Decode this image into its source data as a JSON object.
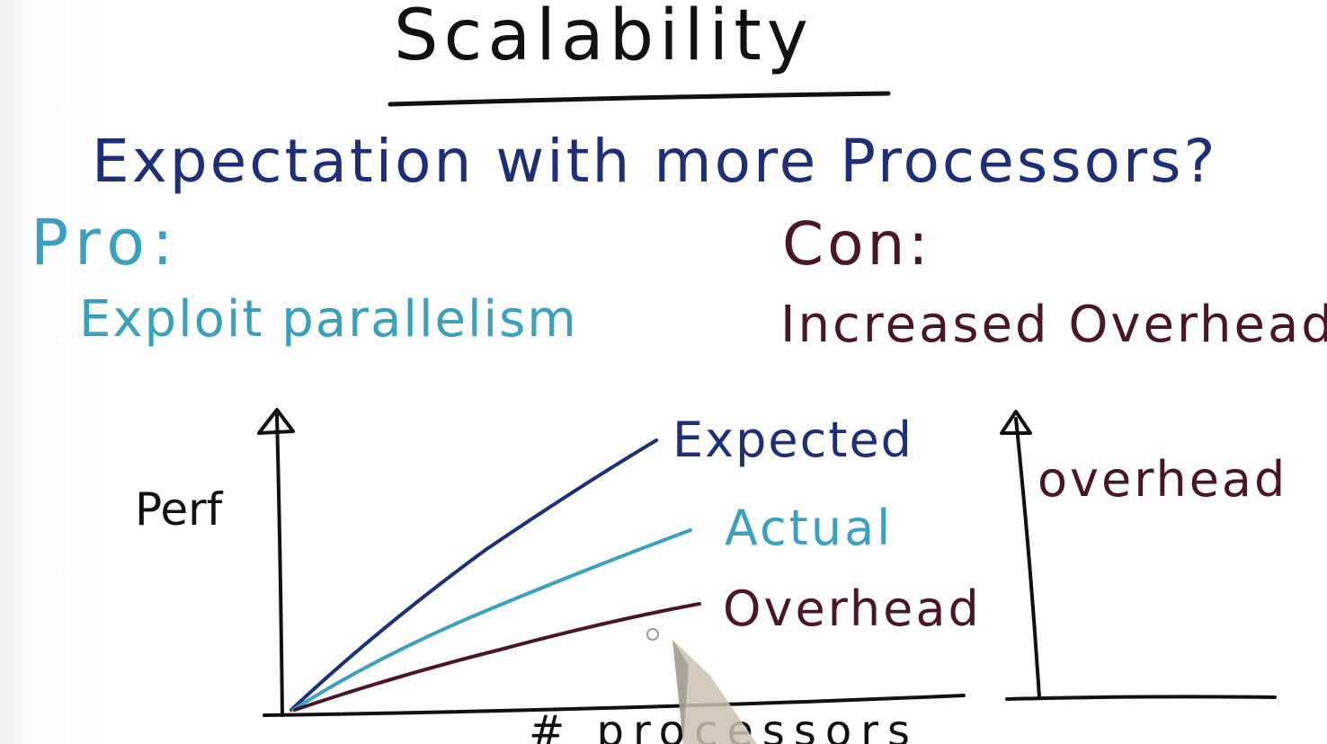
{
  "slide": {
    "title": "Scalability",
    "question": "Expectation with more Processors?",
    "pro": {
      "label": "Pro:",
      "text": "Exploit parallelism",
      "color": "#3aa0bc"
    },
    "con": {
      "label": "Con:",
      "text": "Increased Overhead",
      "color": "#4a1526"
    }
  },
  "perf_chart": {
    "ylabel": "Perf",
    "xlabel": "# processors",
    "series": [
      {
        "name": "Expected",
        "color": "#1e2f78",
        "shape": "steep rising curve"
      },
      {
        "name": "Actual",
        "color": "#3aa0bc",
        "shape": "moderately rising curve"
      },
      {
        "name": "Overhead",
        "color": "#4a1526",
        "shape": "gently rising curve"
      }
    ]
  },
  "overhead_chart": {
    "ylabel": "overhead",
    "color": "#4a1526"
  },
  "colors": {
    "ink_black": "#111111",
    "ink_blue": "#1e2f78",
    "ink_teal": "#3aa0bc",
    "ink_maroon": "#4a1526"
  }
}
